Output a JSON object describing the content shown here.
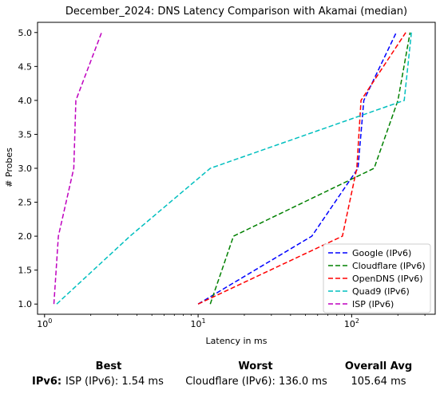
{
  "chart_data": {
    "type": "line",
    "title": "December_2024: DNS Latency Comparison with Akamai (median)",
    "xlabel": "Latency in ms",
    "ylabel": "# Probes",
    "xscale": "log",
    "xlim": [
      0.9,
      350
    ],
    "ylim": [
      0.85,
      5.15
    ],
    "xticks": [
      {
        "value": 1,
        "label": "10^0"
      },
      {
        "value": 10,
        "label": "10^1"
      },
      {
        "value": 100,
        "label": "10^2"
      }
    ],
    "yticks": [
      1.0,
      1.5,
      2.0,
      2.5,
      3.0,
      3.5,
      4.0,
      4.5,
      5.0
    ],
    "ytick_labels": [
      "1.0",
      "1.5",
      "2.0",
      "2.5",
      "3.0",
      "3.5",
      "4.0",
      "4.5",
      "5.0"
    ],
    "grid": false,
    "legend_position": "bottom-right",
    "series": [
      {
        "name": "Google (IPv6)",
        "color": "#0000ff",
        "x": [
          10,
          55,
          110,
          120,
          195
        ],
        "y": [
          1,
          2,
          3,
          4,
          5
        ]
      },
      {
        "name": "Cloudflare (IPv6)",
        "color": "#008000",
        "x": [
          12,
          17,
          140,
          200,
          240
        ],
        "y": [
          1,
          2,
          3,
          4,
          5
        ]
      },
      {
        "name": "OpenDNS (IPv6)",
        "color": "#ff0000",
        "x": [
          10,
          87,
          108,
          115,
          225
        ],
        "y": [
          1,
          2,
          3,
          4,
          5
        ]
      },
      {
        "name": "Quad9 (IPv6)",
        "color": "#00bfbf",
        "x": [
          1.2,
          3.6,
          12,
          220,
          245
        ],
        "y": [
          1,
          2,
          3,
          4,
          5
        ]
      },
      {
        "name": "ISP (IPv6)",
        "color": "#bf00bf",
        "x": [
          1.15,
          1.23,
          1.55,
          1.6,
          2.35
        ],
        "y": [
          1,
          2,
          3,
          4,
          5
        ]
      }
    ]
  },
  "summary": {
    "headers": {
      "best": "Best",
      "worst": "Worst",
      "overall": "Overall Avg"
    },
    "row_label": "IPv6:",
    "best": "ISP (IPv6): 1.54 ms",
    "worst": "Cloudflare (IPv6): 136.0 ms",
    "overall": "105.64 ms"
  }
}
